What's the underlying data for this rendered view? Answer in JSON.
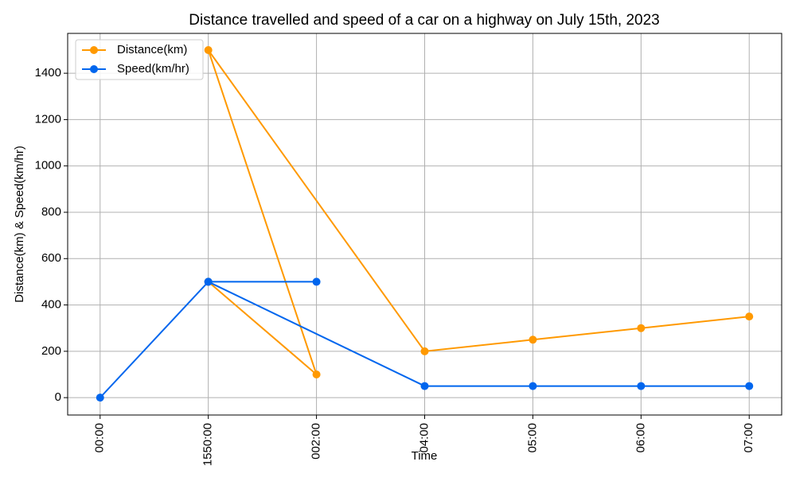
{
  "chart_data": {
    "type": "line",
    "title": "Distance travelled and speed of a car on a highway on July 15th, 2023",
    "xlabel": "Time",
    "ylabel": "Distance(km) & Speed(km/hr)",
    "x": [
      "00:00",
      "1550:00",
      "002:00",
      "1550:00",
      "04:00",
      "05:00",
      "06:00",
      "07:00"
    ],
    "series": [
      {
        "name": "Distance(km)",
        "color": "#ff9900",
        "values": [
          null,
          500,
          100,
          1500,
          200,
          250,
          300,
          350
        ]
      },
      {
        "name": "Speed(km/hr)",
        "color": "#0066ee",
        "values": [
          0,
          500,
          500,
          500,
          50,
          50,
          50,
          50
        ]
      }
    ],
    "ylim": [
      -75,
      1572
    ],
    "yticks": [
      0,
      200,
      400,
      600,
      800,
      1000,
      1200,
      1400
    ],
    "grid": true,
    "legend": "upper left"
  }
}
